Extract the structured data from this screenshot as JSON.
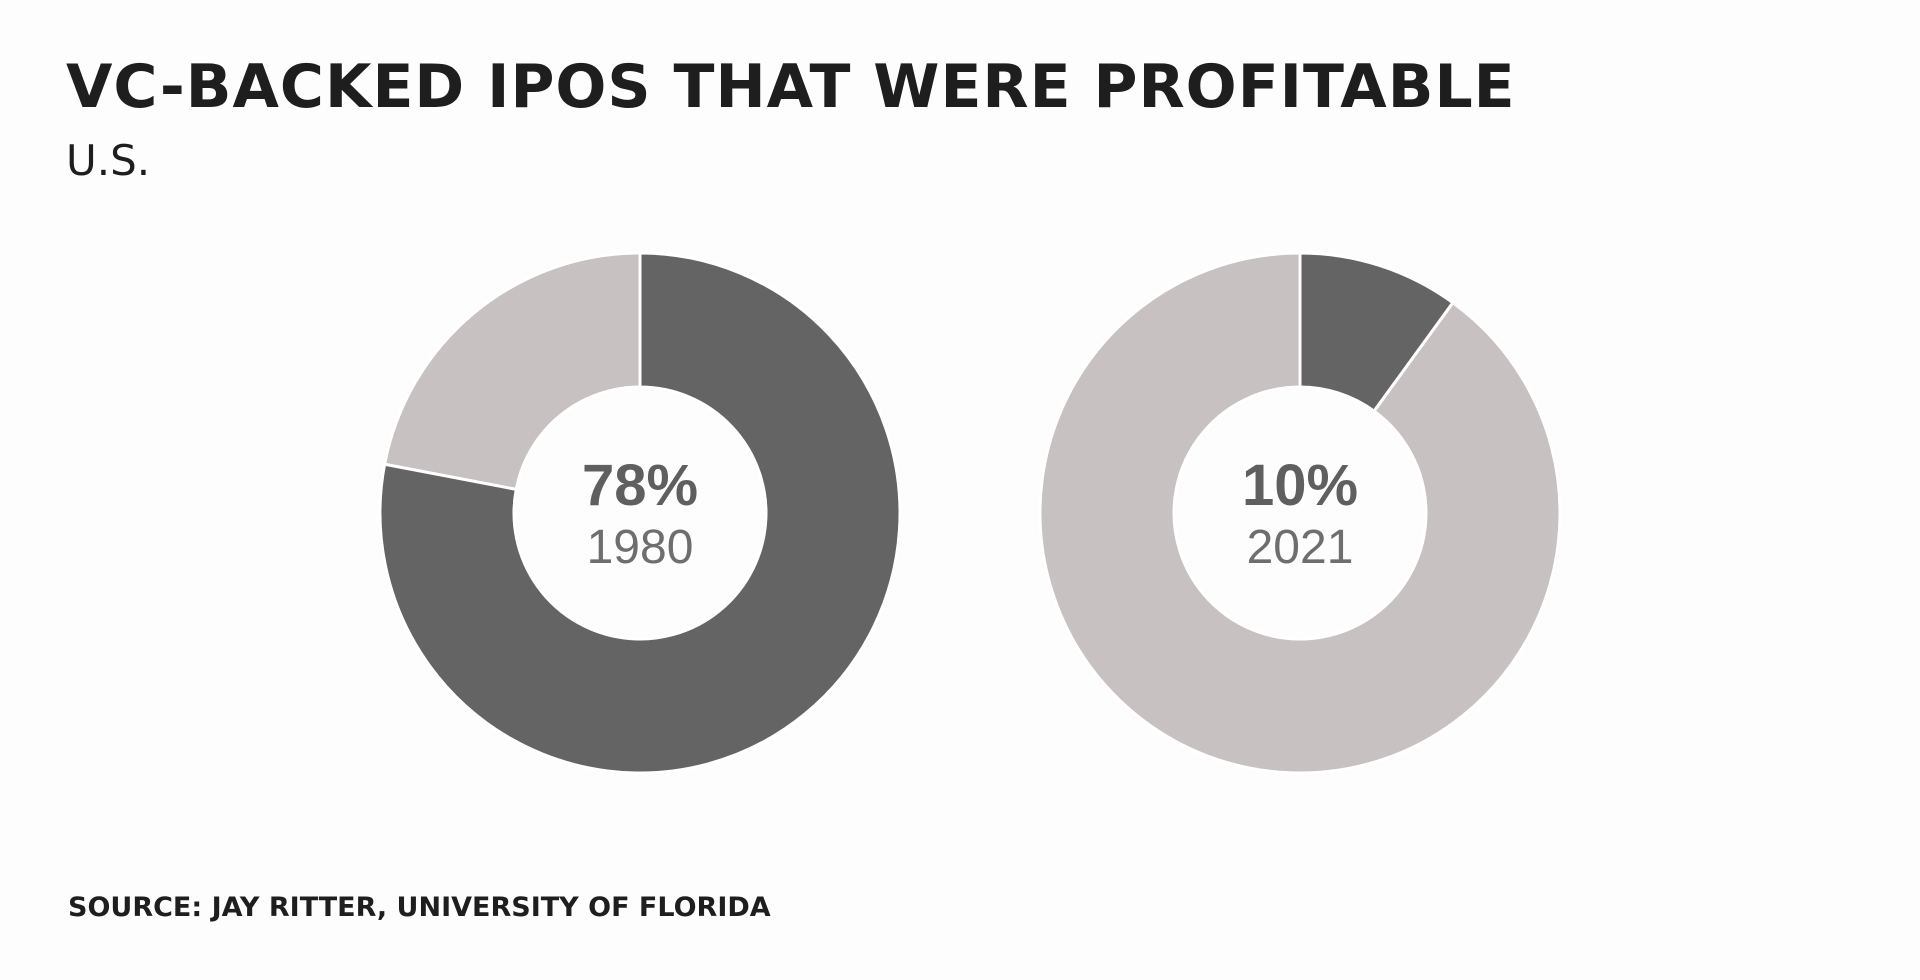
{
  "header": {
    "title": "VC-BACKED IPOS THAT WERE PROFITABLE",
    "subtitle": "U.S."
  },
  "footer": {
    "source": "SOURCE: JAY RITTER, UNIVERSITY OF FLORIDA"
  },
  "colors": {
    "profitable": "#646464",
    "not_profitable": "#c7c1c1",
    "center_value": "#5f5f5f",
    "center_label": "#6e6e6e",
    "separator": "#ffffff"
  },
  "chart_data": [
    {
      "type": "pie",
      "title": "",
      "categories": [
        "1980"
      ],
      "values": [
        78
      ],
      "center_value": "78%",
      "center_label": "1980"
    },
    {
      "type": "pie",
      "title": "",
      "categories": [
        "2021"
      ],
      "values": [
        10
      ],
      "center_value": "10%",
      "center_label": "2021"
    }
  ]
}
